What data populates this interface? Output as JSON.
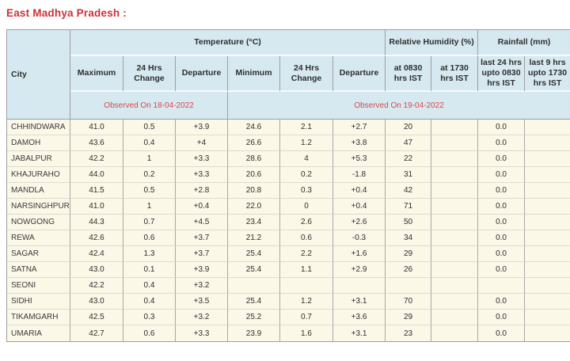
{
  "page": {
    "title": "East Madhya Pradesh :"
  },
  "colors": {
    "title_red": "#cc3136",
    "observed_red": "#d9484a",
    "header_bg": "#d6e9f1",
    "row_bg": "#fbf8e8",
    "grid_dark": "#9e9e9e",
    "grid_light": "#dedbca"
  },
  "table": {
    "corner_header": "City",
    "groups": [
      {
        "label": "Temperature (°C)",
        "span": 6
      },
      {
        "label": "Relative Humidity (%)",
        "span": 2
      },
      {
        "label": "Rainfall (mm)",
        "span": 2
      }
    ],
    "sub_headers": [
      "Maximum",
      "24 Hrs Change",
      "Departure",
      "Minimum",
      "24 Hrs Change",
      "Departure",
      "at 0830 hrs IST",
      "at 1730 hrs IST",
      "last 24 hrs upto 0830 hrs IST",
      "last 9 hrs upto 1730 hrs IST"
    ],
    "observed_banners": [
      {
        "label": "Observed On 18-04-2022",
        "span": 3
      },
      {
        "label": "Observed On 19-04-2022",
        "span": 7
      }
    ],
    "rows": [
      {
        "city": "CHHINDWARA",
        "values": [
          "41.0",
          "0.5",
          "+3.9",
          "24.6",
          "2.1",
          "+2.7",
          "20",
          "",
          "0.0",
          ""
        ]
      },
      {
        "city": "DAMOH",
        "values": [
          "43.6",
          "0.4",
          "+4",
          "26.6",
          "1.2",
          "+3.8",
          "47",
          "",
          "0.0",
          ""
        ]
      },
      {
        "city": "JABALPUR",
        "values": [
          "42.2",
          "1",
          "+3.3",
          "28.6",
          "4",
          "+5.3",
          "22",
          "",
          "0.0",
          ""
        ]
      },
      {
        "city": "KHAJURAHO",
        "values": [
          "44.0",
          "0.2",
          "+3.3",
          "20.6",
          "0.2",
          "-1.8",
          "31",
          "",
          "0.0",
          ""
        ]
      },
      {
        "city": "MANDLA",
        "values": [
          "41.5",
          "0.5",
          "+2.8",
          "20.8",
          "0.3",
          "+0.4",
          "42",
          "",
          "0.0",
          ""
        ]
      },
      {
        "city": "NARSINGHPUR",
        "values": [
          "41.0",
          "1",
          "+0.4",
          "22.0",
          "0",
          "+0.4",
          "71",
          "",
          "0.0",
          ""
        ]
      },
      {
        "city": "NOWGONG",
        "values": [
          "44.3",
          "0.7",
          "+4.5",
          "23.4",
          "2.6",
          "+2.6",
          "50",
          "",
          "0.0",
          ""
        ]
      },
      {
        "city": "REWA",
        "values": [
          "42.6",
          "0.6",
          "+3.7",
          "21.2",
          "0.6",
          "-0.3",
          "34",
          "",
          "0.0",
          ""
        ]
      },
      {
        "city": "SAGAR",
        "values": [
          "42.4",
          "1.3",
          "+3.7",
          "25.4",
          "2.2",
          "+1.6",
          "29",
          "",
          "0.0",
          ""
        ]
      },
      {
        "city": "SATNA",
        "values": [
          "43.0",
          "0.1",
          "+3.9",
          "25.4",
          "1.1",
          "+2.9",
          "26",
          "",
          "0.0",
          ""
        ]
      },
      {
        "city": "SEONI",
        "values": [
          "42.2",
          "0.4",
          "+3.2",
          "",
          "",
          "",
          "",
          "",
          "",
          ""
        ]
      },
      {
        "city": "SIDHI",
        "values": [
          "43.0",
          "0.4",
          "+3.5",
          "25.4",
          "1.2",
          "+3.1",
          "70",
          "",
          "0.0",
          ""
        ]
      },
      {
        "city": "TIKAMGARH",
        "values": [
          "42.5",
          "0.3",
          "+3.2",
          "25.2",
          "0.7",
          "+3.6",
          "29",
          "",
          "0.0",
          ""
        ]
      },
      {
        "city": "UMARIA",
        "values": [
          "42.7",
          "0.6",
          "+3.3",
          "23.9",
          "1.6",
          "+3.1",
          "23",
          "",
          "0.0",
          ""
        ]
      }
    ]
  }
}
